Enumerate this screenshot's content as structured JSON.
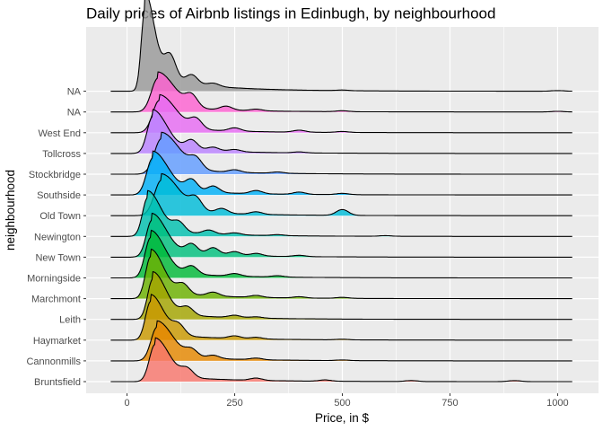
{
  "chart_data": {
    "type": "ridgeline",
    "title": "Daily prices of Airbnb listings in Edinbugh, by neighbourhood",
    "xlabel": "Price, in $",
    "ylabel": "neighbourhood",
    "xlim": [
      -95,
      1095
    ],
    "x_ticks": [
      0,
      250,
      500,
      750,
      1000
    ],
    "x_tick_labels": [
      "0",
      "250",
      "500",
      "750",
      "1000"
    ],
    "grid": true,
    "legend": "none",
    "series": [
      {
        "name": "Bruntsfield",
        "color": "#F8766D",
        "peak_price": 65,
        "peak_height": 1.15,
        "spread": 24,
        "bumps": [
          [
            140,
            0.25
          ],
          [
            300,
            0.07
          ],
          [
            460,
            0.04
          ],
          [
            660,
            0.03
          ],
          [
            900,
            0.03
          ]
        ]
      },
      {
        "name": "Cannonmills",
        "color": "#E58700",
        "peak_price": 70,
        "peak_height": 1.05,
        "spread": 26,
        "bumps": [
          [
            150,
            0.22
          ],
          [
            200,
            0.1
          ],
          [
            300,
            0.05
          ],
          [
            500,
            0.02
          ]
        ]
      },
      {
        "name": "Haymarket",
        "color": "#C99800",
        "peak_price": 55,
        "peak_height": 1.2,
        "spread": 22,
        "bumps": [
          [
            120,
            0.3
          ],
          [
            250,
            0.08
          ],
          [
            300,
            0.05
          ],
          [
            500,
            0.02
          ]
        ]
      },
      {
        "name": "Leith",
        "color": "#A3A500",
        "peak_price": 60,
        "peak_height": 1.25,
        "spread": 22,
        "bumps": [
          [
            140,
            0.25
          ],
          [
            250,
            0.07
          ],
          [
            300,
            0.04
          ]
        ]
      },
      {
        "name": "Marchmont",
        "color": "#6BB100",
        "peak_price": 55,
        "peak_height": 1.3,
        "spread": 22,
        "bumps": [
          [
            130,
            0.3
          ],
          [
            200,
            0.12
          ],
          [
            300,
            0.06
          ],
          [
            400,
            0.04
          ],
          [
            500,
            0.03
          ]
        ]
      },
      {
        "name": "Morningside",
        "color": "#00BA38",
        "peak_price": 55,
        "peak_height": 1.25,
        "spread": 24,
        "bumps": [
          [
            150,
            0.25
          ],
          [
            250,
            0.08
          ],
          [
            350,
            0.04
          ]
        ]
      },
      {
        "name": "New Town",
        "color": "#00BF7D",
        "peak_price": 58,
        "peak_height": 1.15,
        "spread": 24,
        "bumps": [
          [
            150,
            0.3
          ],
          [
            200,
            0.22
          ],
          [
            250,
            0.12
          ],
          [
            300,
            0.08
          ],
          [
            400,
            0.04
          ]
        ]
      },
      {
        "name": "Newington",
        "color": "#00C0AF",
        "peak_price": 48,
        "peak_height": 1.2,
        "spread": 22,
        "bumps": [
          [
            120,
            0.3
          ],
          [
            190,
            0.12
          ],
          [
            250,
            0.06
          ],
          [
            350,
            0.03
          ],
          [
            600,
            0.02
          ]
        ]
      },
      {
        "name": "Old Town",
        "color": "#00BCD8",
        "peak_price": 80,
        "peak_height": 1.1,
        "spread": 30,
        "bumps": [
          [
            160,
            0.35
          ],
          [
            220,
            0.15
          ],
          [
            300,
            0.08
          ],
          [
            500,
            0.18
          ]
        ]
      },
      {
        "name": "Southside",
        "color": "#00B0F6",
        "peak_price": 60,
        "peak_height": 1.15,
        "spread": 26,
        "bumps": [
          [
            150,
            0.35
          ],
          [
            200,
            0.2
          ],
          [
            300,
            0.1
          ],
          [
            400,
            0.07
          ],
          [
            500,
            0.04
          ]
        ]
      },
      {
        "name": "Stockbridge",
        "color": "#619CFF",
        "peak_price": 80,
        "peak_height": 1.1,
        "spread": 30,
        "bumps": [
          [
            160,
            0.3
          ],
          [
            250,
            0.08
          ],
          [
            350,
            0.04
          ]
        ]
      },
      {
        "name": "Tollcross",
        "color": "#B983FF",
        "peak_price": 60,
        "peak_height": 1.15,
        "spread": 24,
        "bumps": [
          [
            150,
            0.3
          ],
          [
            200,
            0.12
          ],
          [
            250,
            0.07
          ],
          [
            400,
            0.03
          ]
        ]
      },
      {
        "name": "West End",
        "color": "#E76BF3",
        "peak_price": 75,
        "peak_height": 1.0,
        "spread": 28,
        "bumps": [
          [
            160,
            0.3
          ],
          [
            250,
            0.1
          ],
          [
            400,
            0.06
          ],
          [
            500,
            0.03
          ]
        ]
      },
      {
        "name": "NA",
        "color": "#FD61D1",
        "peak_price": 72,
        "peak_height": 1.05,
        "spread": 28,
        "bumps": [
          [
            150,
            0.35
          ],
          [
            230,
            0.12
          ],
          [
            300,
            0.05
          ],
          [
            500,
            0.03
          ],
          [
            1000,
            0.02
          ]
        ]
      },
      {
        "name": "NA",
        "color": "#999999",
        "peak_price": 42,
        "peak_height": 2.6,
        "spread": 16,
        "bumps": [
          [
            100,
            0.8
          ],
          [
            150,
            0.3
          ],
          [
            200,
            0.1
          ],
          [
            500,
            0.02
          ],
          [
            1000,
            0.02
          ]
        ]
      }
    ]
  }
}
